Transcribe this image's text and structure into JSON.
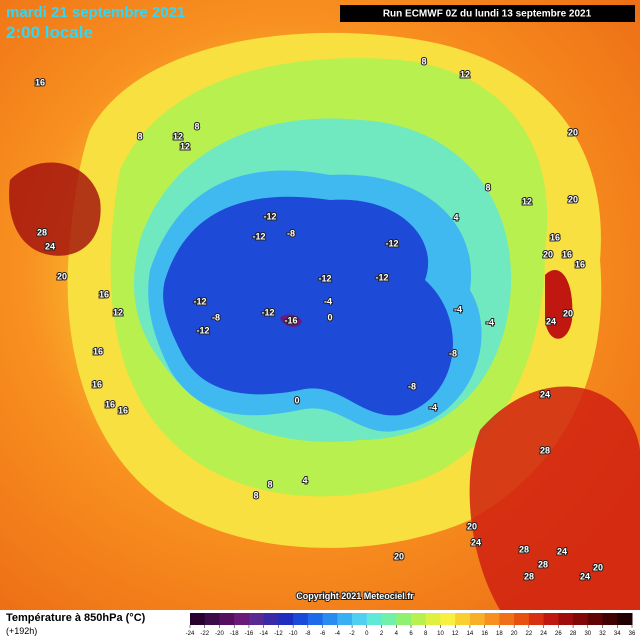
{
  "header": {
    "date": "mardi 21 septembre 2021",
    "time": "2:00 locale",
    "run": "Run ECMWF 0Z du lundi 13 septembre 2021"
  },
  "map": {
    "labels": [
      "16",
      "12",
      "8",
      "8",
      "12",
      "12",
      "8",
      "20",
      "20",
      "28",
      "24",
      "20",
      "16",
      "12",
      "16",
      "16",
      "16",
      "16",
      "-12",
      "-12",
      "-8",
      "-12",
      "-12",
      "-12",
      "-12",
      "-8",
      "-12",
      "-12",
      "-16",
      "-4",
      "0",
      "-4",
      "-4",
      "-8",
      "-8",
      "-4",
      "16",
      "16",
      "16",
      "20",
      "24",
      "20",
      "24",
      "28",
      "8",
      "20",
      "24",
      "28",
      "24",
      "28",
      "28",
      "20",
      "20",
      "24",
      "4",
      "8",
      "12",
      "0",
      "4",
      "8"
    ]
  },
  "footer": {
    "copyright": "Copyright 2021 Meteociel.fr",
    "legend_title": "Température à 850hPa (°C)",
    "lead": "(+192h)"
  },
  "legend": {
    "ticks": [
      -24,
      -22,
      -20,
      -18,
      -16,
      -14,
      -12,
      -10,
      -8,
      -6,
      -4,
      -2,
      0,
      2,
      4,
      6,
      8,
      10,
      12,
      14,
      16,
      18,
      20,
      22,
      24,
      26,
      28,
      30,
      32,
      34,
      36
    ],
    "colors": [
      "#2a0030",
      "#3d0a4a",
      "#551060",
      "#6a1a78",
      "#5a2a90",
      "#3a2aa8",
      "#1f2ec0",
      "#1a4ad8",
      "#1e6ae8",
      "#2a8cf0",
      "#3ab0f4",
      "#50d0f0",
      "#60e8d8",
      "#70f0a8",
      "#90f070",
      "#b8f050",
      "#e0f040",
      "#f8f040",
      "#f8d030",
      "#f8b028",
      "#f89020",
      "#f07018",
      "#e85010",
      "#d83010",
      "#c01810",
      "#a00c0c",
      "#800808",
      "#600404",
      "#400202",
      "#200000"
    ]
  }
}
